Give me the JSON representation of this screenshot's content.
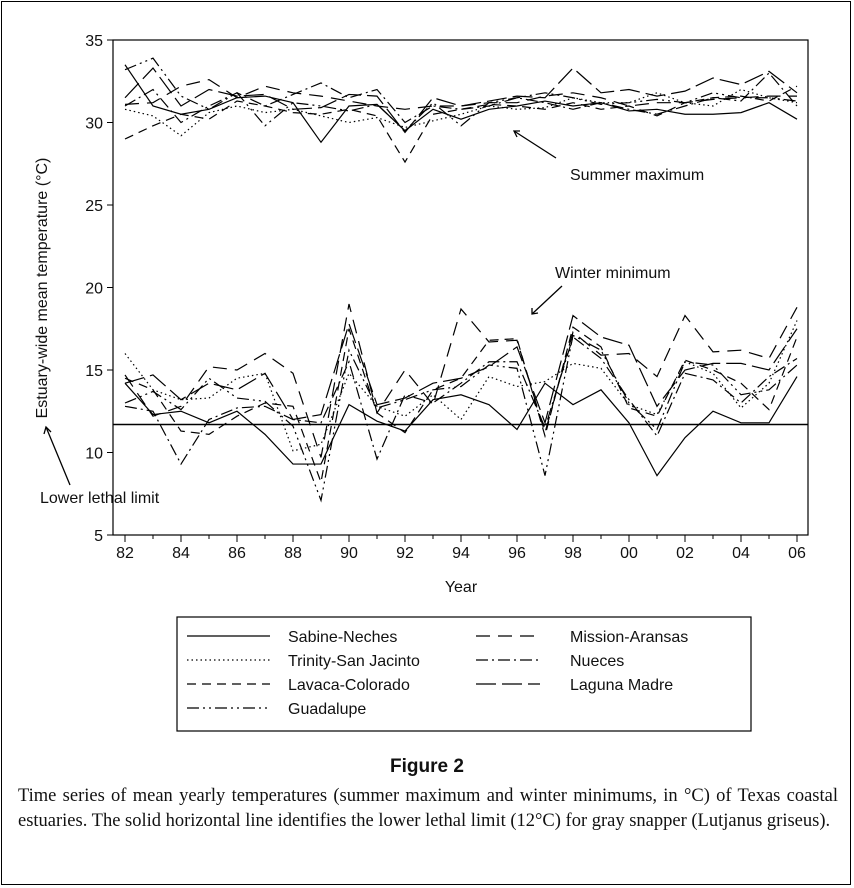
{
  "chart_data": {
    "type": "line",
    "y_label": "Estuary-wide mean temperature (°C)",
    "x_label": "Year",
    "categories": [
      "82",
      null,
      "84",
      null,
      "86",
      null,
      "88",
      null,
      "90",
      null,
      "92",
      null,
      "94",
      null,
      "96",
      null,
      "98",
      null,
      "00",
      null,
      "02",
      null,
      "04",
      null,
      "06"
    ],
    "ylim": [
      5,
      35
    ],
    "yticks": [
      5,
      10,
      15,
      20,
      25,
      30,
      35
    ],
    "hline": 11.7,
    "annotations": [
      "Summer maximum",
      "Winter minimum",
      "Lower lethal limit"
    ],
    "series": [
      {
        "name": "Sabine-Neches",
        "color": "#000000",
        "dash": "none",
        "summer_max": [
          33.5,
          31,
          30.5,
          30.8,
          31.5,
          31.6,
          31.2,
          28.8,
          31,
          31.1,
          29.5,
          30.8,
          30.2,
          30.8,
          31,
          31.3,
          31,
          31.2,
          30.7,
          30.8,
          30.5,
          30.5,
          30.6,
          31.2,
          30.2
        ],
        "winter_min": [
          14.2,
          12.3,
          12.5,
          11.8,
          12.5,
          11.1,
          9.3,
          9.3,
          12.9,
          11.9,
          11.3,
          13.2,
          13.5,
          12.9,
          11.4,
          14.2,
          12.9,
          13.8,
          11.8,
          8.6,
          10.9,
          12.5,
          11.8,
          11.8,
          14.6
        ]
      },
      {
        "name": "Trinity-San Jacinto",
        "color": "#000000",
        "dash": "1.5,3",
        "summer_max": [
          30.8,
          30.4,
          29.2,
          30.6,
          31,
          30.6,
          30.8,
          30.4,
          30,
          30.3,
          29.7,
          30.1,
          30.5,
          31,
          30.8,
          30.9,
          31.5,
          31.2,
          31.2,
          31.8,
          31.2,
          31,
          32,
          31.5,
          31.2
        ],
        "winter_min": [
          16,
          13.8,
          13.2,
          13.3,
          14.5,
          14.8,
          10.1,
          10.5,
          14.8,
          12.8,
          12.2,
          13.5,
          12,
          14.6,
          14,
          14.3,
          15.4,
          15.1,
          12.9,
          12.3,
          15.5,
          14.8,
          12.7,
          14.2,
          18
        ]
      },
      {
        "name": "Lavaca-Colorado",
        "color": "#000000",
        "dash": "9,6",
        "summer_max": [
          29,
          29.8,
          30.5,
          30.2,
          31.3,
          31,
          30.6,
          30.5,
          30.8,
          30.4,
          27.6,
          30.5,
          30.8,
          31.1,
          31,
          30.8,
          31.2,
          30.8,
          31,
          30.4,
          31.2,
          31.5,
          31.6,
          31.3,
          32.2
        ],
        "winter_min": [
          14.5,
          13.8,
          11.3,
          11.1,
          12.2,
          13,
          12.8,
          8.2,
          17.5,
          12.4,
          11.2,
          13.8,
          14.5,
          16.8,
          16.9,
          11,
          17.6,
          16.4,
          12.7,
          12.2,
          15.6,
          15,
          14.2,
          12.6,
          17
        ]
      },
      {
        "name": "Guadalupe",
        "color": "#000000",
        "dash": "12,4,2,4,2,4",
        "summer_max": [
          33.2,
          33.9,
          31.6,
          30.8,
          31.8,
          29.8,
          31.2,
          31,
          30.7,
          31.1,
          29.5,
          31.2,
          29.8,
          31.2,
          31.5,
          31.8,
          31.5,
          31.1,
          31.2,
          31.4,
          31.2,
          31.8,
          31.5,
          31.5,
          31.3
        ],
        "winter_min": [
          13,
          13.7,
          12.6,
          14.5,
          13.3,
          13.1,
          11.6,
          7.1,
          16.2,
          12.7,
          13.2,
          13.8,
          14,
          15.3,
          15.1,
          8.6,
          17.1,
          16.2,
          13,
          11.4,
          15.5,
          15.3,
          13.5,
          13.8,
          15.3
        ]
      },
      {
        "name": "Mission-Aransas",
        "color": "#000000",
        "dash": "14,8",
        "summer_max": [
          31.1,
          31.2,
          32.2,
          32.6,
          31.5,
          32.2,
          31.8,
          31.6,
          31.3,
          31,
          30.8,
          31,
          31,
          31.2,
          31.2,
          31.6,
          31.8,
          31.5,
          31,
          31.2,
          31.2,
          31.4,
          31.5,
          31.6,
          31.6
        ],
        "winter_min": [
          14.7,
          12.2,
          12.8,
          15.2,
          15,
          16,
          14.8,
          9.7,
          19,
          12.4,
          15,
          12.9,
          18.7,
          16.7,
          16.8,
          11.2,
          17.3,
          15.9,
          16,
          14.6,
          18.3,
          16.1,
          16.2,
          15.7,
          18.8
        ]
      },
      {
        "name": "Nueces",
        "color": "#000000",
        "dash": "12,4,2,4",
        "summer_max": [
          31,
          32,
          30,
          31,
          31.8,
          31,
          31.7,
          32.4,
          31.5,
          32,
          30,
          31,
          30.8,
          31,
          31.5,
          31.2,
          30.8,
          31.2,
          30.8,
          30.5,
          31,
          31.5,
          31.3,
          33,
          31
        ],
        "winter_min": [
          12.8,
          12.5,
          9.3,
          12,
          12.7,
          12.8,
          12,
          11.8,
          15.5,
          9.6,
          13.5,
          13,
          14.2,
          15.5,
          15.5,
          11.5,
          17,
          15.7,
          13.2,
          11,
          14.8,
          14.4,
          13,
          14.6,
          15.7
        ]
      },
      {
        "name": "Laguna Madre",
        "color": "#000000",
        "dash": "20,6",
        "summer_max": [
          31.5,
          33.3,
          31,
          32,
          31.6,
          31.7,
          30.8,
          30.9,
          31.7,
          31.6,
          29.4,
          31.5,
          31,
          31.3,
          31.6,
          31.5,
          33.3,
          31.8,
          32,
          31.6,
          31.9,
          32.7,
          32.3,
          33.1,
          31.8
        ],
        "winter_min": [
          14.2,
          14.7,
          13.2,
          14.2,
          13.8,
          14.8,
          12,
          12.3,
          17.8,
          12.9,
          13.3,
          14.2,
          14.5,
          15.2,
          16.4,
          11.8,
          18.3,
          17,
          16.5,
          12.8,
          15,
          15.4,
          15.4,
          15,
          17.5
        ]
      }
    ]
  },
  "figure_label": "Figure 2",
  "caption": "Time series of mean yearly temperatures (summer maximum and winter minimums, in °C) of Texas coastal estuaries. The solid horizontal line identifies the lower lethal limit (12°C) for gray snapper (Lutjanus griseus)."
}
